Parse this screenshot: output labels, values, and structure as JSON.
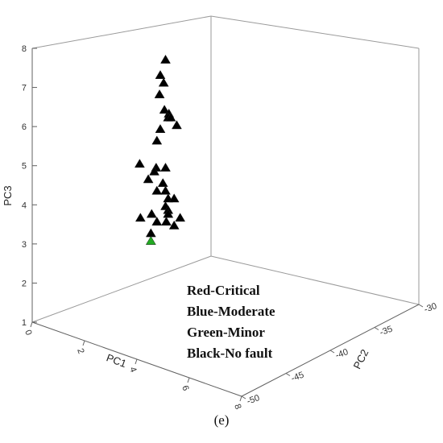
{
  "chart_data": {
    "type": "scatter",
    "projection": "3d",
    "axes": {
      "x": {
        "label": "PC1",
        "ticks": [
          "0",
          "2",
          "4",
          "6",
          "8"
        ]
      },
      "y": {
        "label": "PC2",
        "ticks": [
          "-50",
          "-45",
          "-40",
          "-35",
          "-30"
        ]
      },
      "z": {
        "label": "PC3",
        "ticks": [
          "1",
          "2",
          "3",
          "4",
          "5",
          "6",
          "7",
          "8"
        ]
      }
    },
    "legend": {
      "placement": "center-bottom",
      "lines": [
        "Red-Critical",
        "Blue-Moderate",
        "Green-Minor",
        "Black-No fault"
      ]
    },
    "series": [
      {
        "label": "Black-No fault",
        "color": "#000000",
        "marker": "triangle",
        "points": [
          [
            3.8,
            -40,
            7.8
          ],
          [
            3.6,
            -40,
            7.4
          ],
          [
            3.6,
            -39,
            7.2
          ],
          [
            3.7,
            -41,
            6.9
          ],
          [
            3.5,
            -38,
            6.5
          ],
          [
            3.8,
            -39,
            6.4
          ],
          [
            3.9,
            -40,
            6.3
          ],
          [
            4.0,
            -40,
            6.3
          ],
          [
            4.1,
            -39,
            6.1
          ],
          [
            3.6,
            -40,
            6.0
          ],
          [
            3.6,
            -41,
            5.7
          ],
          [
            3.2,
            -43,
            5.1
          ],
          [
            3.7,
            -42,
            5.0
          ],
          [
            3.5,
            -41,
            4.9
          ],
          [
            3.8,
            -40,
            5.0
          ],
          [
            3.4,
            -42,
            4.7
          ],
          [
            3.7,
            -40,
            4.6
          ],
          [
            3.6,
            -41,
            4.4
          ],
          [
            3.8,
            -40,
            4.4
          ],
          [
            3.9,
            -40,
            4.2
          ],
          [
            4.0,
            -39,
            4.2
          ],
          [
            3.8,
            -40,
            4.0
          ],
          [
            3.9,
            -40,
            3.9
          ],
          [
            3.4,
            -41,
            3.8
          ],
          [
            3.6,
            -41,
            3.6
          ],
          [
            3.9,
            -40,
            3.8
          ],
          [
            3.1,
            -42,
            3.7
          ],
          [
            3.7,
            -39,
            3.6
          ],
          [
            4.1,
            -38,
            3.7
          ],
          [
            4.0,
            -39,
            3.5
          ],
          [
            3.5,
            -42,
            3.3
          ]
        ]
      },
      {
        "label": "Green-Minor",
        "color": "#22aa22",
        "marker": "triangle",
        "points": [
          [
            3.5,
            -42,
            3.1
          ]
        ]
      }
    ],
    "grid": false
  },
  "caption": "(e)"
}
